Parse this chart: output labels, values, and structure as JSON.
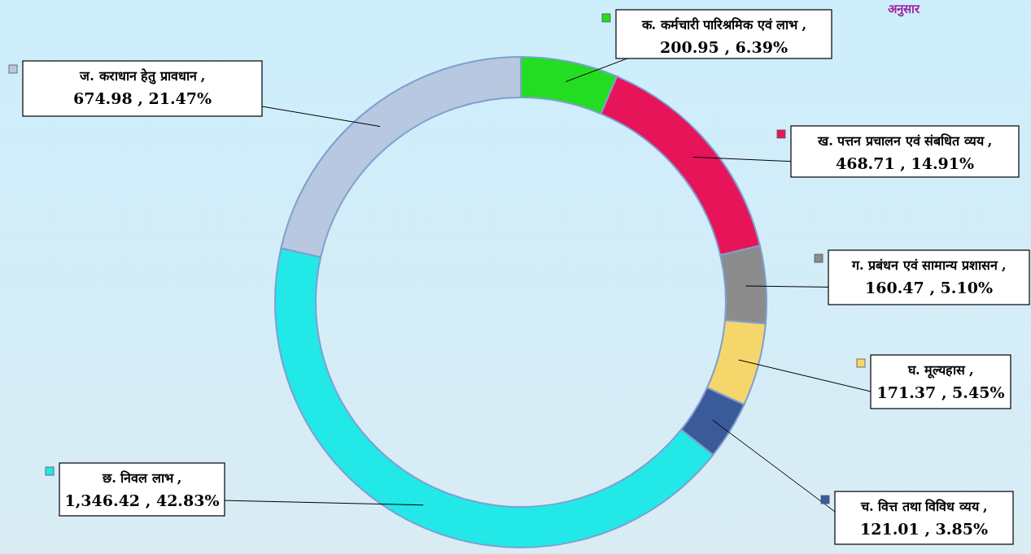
{
  "chart_data": {
    "type": "donut",
    "title": "अनुसार",
    "categories": [
      "क. कर्मचारी पारिश्रमिक एवं लाभ",
      "ख. पत्तन प्रचालन एवं संबधित व्यय",
      "ग. प्रबंधन एवं सामान्य प्रशासन",
      "घ. मूल्यहास",
      "च.  वित्त तथा विविध व्यय",
      "छ. निवल लाभ",
      "ज. कराधान हेतु प्रावधान"
    ],
    "values": [
      200.95,
      468.71,
      160.47,
      171.37,
      121.01,
      1346.42,
      674.98
    ],
    "value_labels": [
      ", 200.95 , 6.39%",
      ", 468.71 , 14.91%",
      ", 160.47 , 5.10%",
      ", 171.37 , 5.45%",
      ", 121.01 , 3.85%",
      ", 1,346.42 , 42.83%",
      ", 674.98 , 21.47%"
    ],
    "colors": [
      "#22dd22",
      "#e8145a",
      "#8c8c8c",
      "#f5d66a",
      "#3a5a9a",
      "#22e8e8",
      "#b8c8e0"
    ]
  }
}
